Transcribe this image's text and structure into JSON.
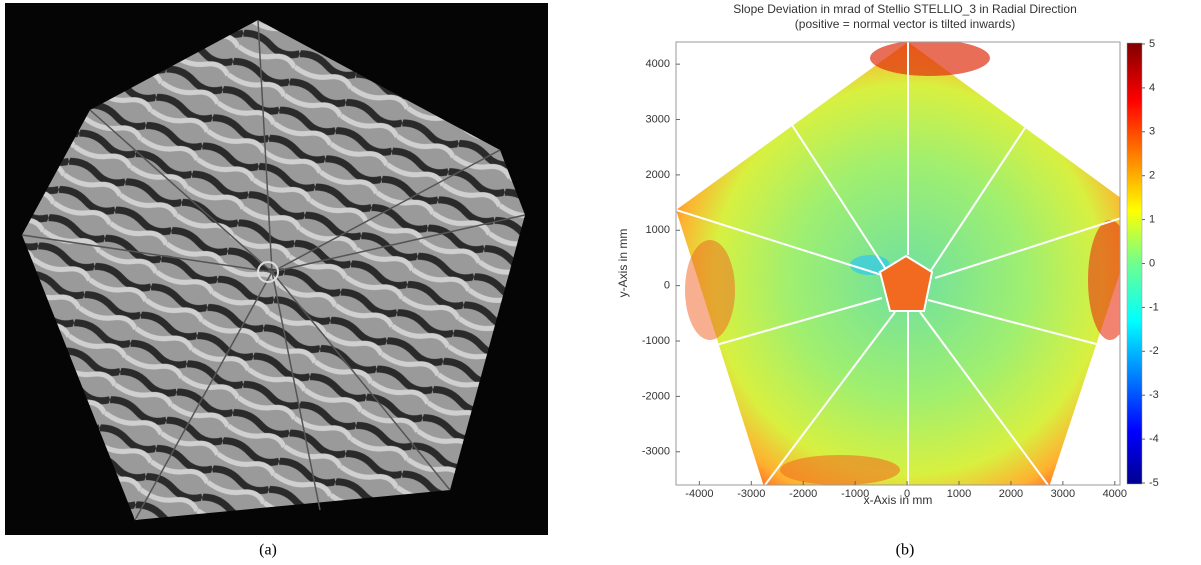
{
  "panels": [
    {
      "caption": "(a)"
    },
    {
      "caption": "(b)",
      "title": "Slope Deviation in mrad of Stellio STELLIO_3 in Radial Direction",
      "subtitle": "(positive = normal vector is tilted inwards)",
      "xlabel": "x-Axis in mm",
      "ylabel": "y-Axis in mm",
      "xlim": [
        -4450,
        4100
      ],
      "xticks": [
        -4000,
        -3000,
        -2000,
        -1000,
        0,
        1000,
        2000,
        3000,
        4000
      ],
      "ylim": [
        -3600,
        4400
      ],
      "yticks": [
        -3000,
        -2000,
        -1000,
        0,
        1000,
        2000,
        3000,
        4000
      ],
      "colorbar": {
        "lim": [
          -5,
          5
        ],
        "ticks": [
          -5,
          -4,
          -3,
          -2,
          -1,
          0,
          1,
          2,
          3,
          4,
          5
        ]
      }
    }
  ]
}
